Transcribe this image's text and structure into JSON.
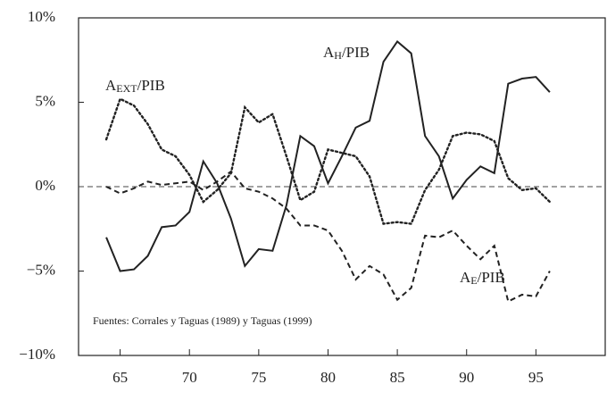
{
  "chart_data": {
    "type": "line",
    "note": "Fuentes: Corrales y Taguas (1989) y Taguas (1999)",
    "x": [
      64,
      65,
      66,
      67,
      68,
      69,
      70,
      71,
      72,
      73,
      74,
      75,
      76,
      77,
      78,
      79,
      80,
      81,
      82,
      83,
      84,
      85,
      86,
      87,
      88,
      89,
      90,
      91,
      92,
      93,
      94,
      95,
      96
    ],
    "series": [
      {
        "name": [
          "A",
          "H",
          "/PIB"
        ],
        "color": "#222",
        "style": "solid",
        "values": [
          -3.0,
          -5.0,
          -4.9,
          -4.1,
          -2.4,
          -2.3,
          -1.5,
          1.5,
          0.2,
          -1.9,
          -4.7,
          -3.7,
          -3.8,
          -1.1,
          3.0,
          2.4,
          0.2,
          1.8,
          3.5,
          3.9,
          7.4,
          8.6,
          7.9,
          3.0,
          1.8,
          -0.7,
          0.4,
          1.2,
          0.8,
          6.1,
          6.4,
          6.5,
          5.6
        ]
      },
      {
        "name": [
          "A",
          "EXT",
          "/PIB"
        ],
        "color": "#222",
        "style": "dotted",
        "values": [
          2.8,
          5.2,
          4.8,
          3.7,
          2.2,
          1.8,
          0.7,
          -0.9,
          -0.2,
          0.8,
          4.7,
          3.8,
          4.3,
          1.8,
          -0.8,
          -0.3,
          2.2,
          2.0,
          1.8,
          0.6,
          -2.2,
          -2.1,
          -2.2,
          -0.2,
          1.0,
          3.0,
          3.2,
          3.1,
          2.7,
          0.5,
          -0.2,
          -0.1,
          -0.9
        ]
      },
      {
        "name": [
          "A",
          "E",
          "/PIB"
        ],
        "color": "#222",
        "style": "dashed",
        "values": [
          0.0,
          -0.4,
          -0.1,
          0.3,
          0.1,
          0.2,
          0.3,
          -0.2,
          0.3,
          0.9,
          -0.1,
          -0.3,
          -0.7,
          -1.3,
          -2.3,
          -2.3,
          -2.6,
          -3.8,
          -5.5,
          -4.7,
          -5.2,
          -6.7,
          -6.0,
          -2.9,
          -3.0,
          -2.6,
          -3.5,
          -4.3,
          -3.5,
          -6.8,
          -6.4,
          -6.5,
          -5.0
        ]
      }
    ],
    "xlim": [
      62,
      100
    ],
    "xticks": [
      65,
      70,
      75,
      80,
      85,
      90,
      95
    ],
    "ylim": [
      -10,
      10
    ],
    "yticks": [
      {
        "value": -10,
        "label": "−10%"
      },
      {
        "value": -5,
        "label": "−5%"
      },
      {
        "value": 0,
        "label": "0%"
      },
      {
        "value": 5,
        "label": "5%"
      },
      {
        "value": 10,
        "label": "10%"
      }
    ],
    "zero_line": true
  }
}
